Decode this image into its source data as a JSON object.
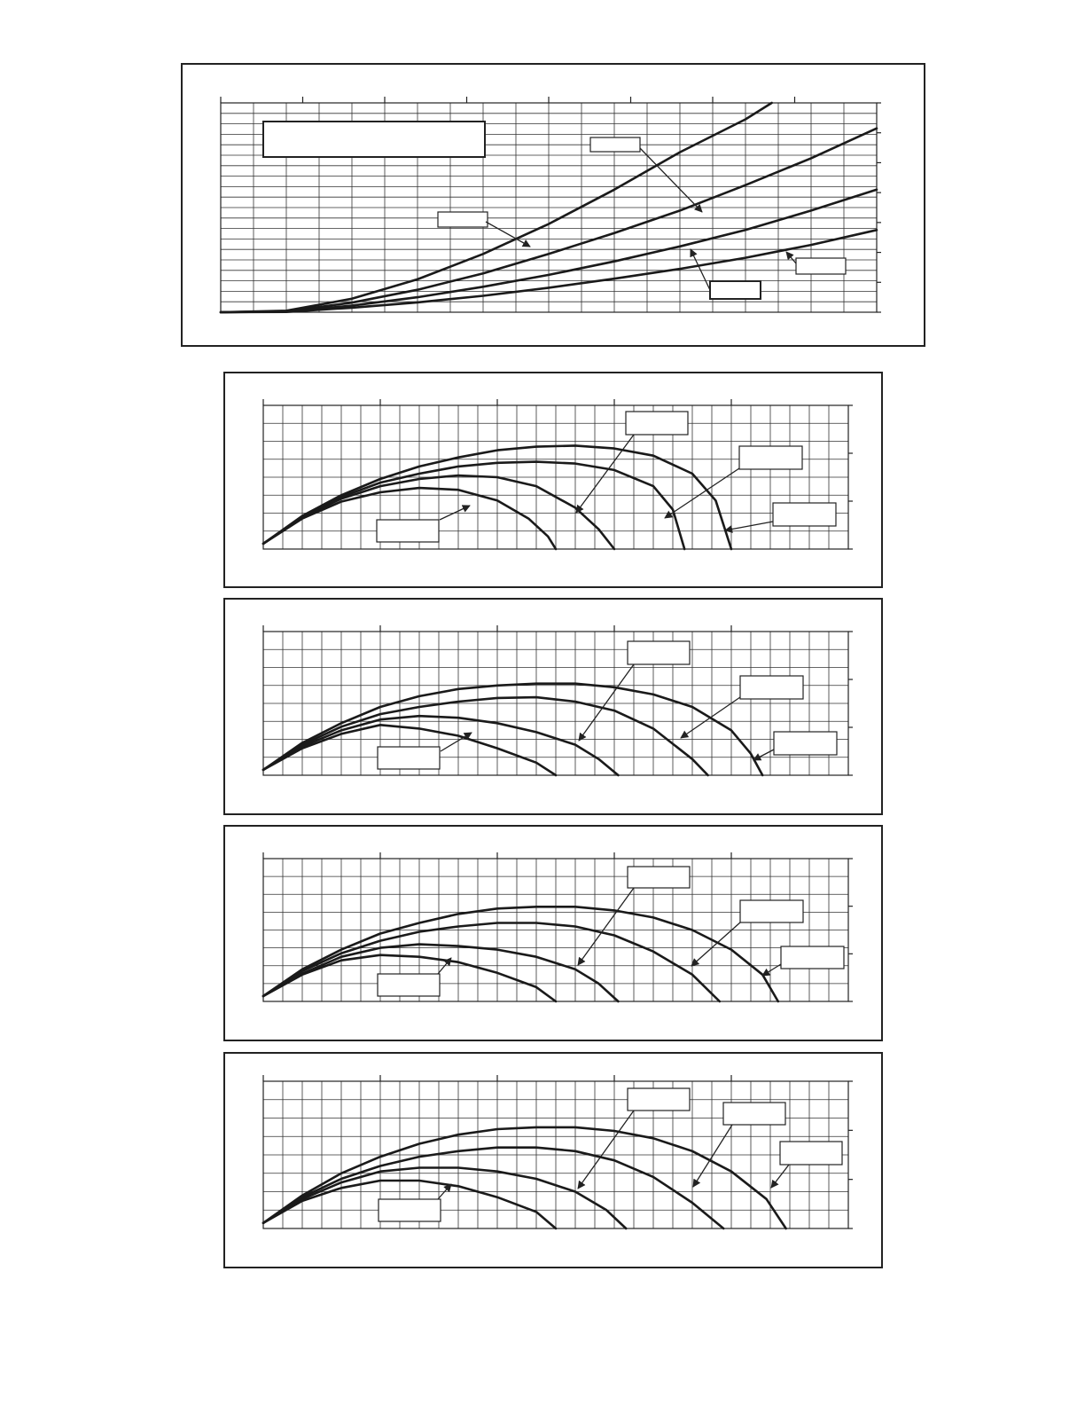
{
  "chart_data": [
    {
      "type": "line",
      "title": "",
      "xlabel": "",
      "ylabel": "",
      "xlim": [
        0,
        20
      ],
      "ylim": [
        0,
        7
      ],
      "grid": true,
      "legend": "",
      "series": [
        {
          "name": "",
          "x": [
            0,
            2,
            4,
            6,
            8,
            10,
            12,
            14,
            16,
            16.8
          ],
          "y": [
            0,
            0.05,
            0.45,
            1.1,
            1.95,
            2.95,
            4.1,
            5.35,
            6.45,
            7.0
          ]
        },
        {
          "name": "",
          "x": [
            0,
            2,
            4,
            6,
            8,
            10,
            12,
            14,
            16,
            18,
            20
          ],
          "y": [
            0,
            0.03,
            0.32,
            0.75,
            1.3,
            1.95,
            2.65,
            3.4,
            4.25,
            5.15,
            6.15
          ]
        },
        {
          "name": "",
          "x": [
            0,
            2,
            4,
            6,
            8,
            10,
            12,
            14,
            16,
            18,
            20
          ],
          "y": [
            0,
            0.02,
            0.22,
            0.5,
            0.85,
            1.25,
            1.7,
            2.2,
            2.75,
            3.4,
            4.1
          ]
        },
        {
          "name": "",
          "x": [
            0,
            2,
            4,
            6,
            8,
            10,
            12,
            14,
            16,
            18,
            20
          ],
          "y": [
            0,
            0.01,
            0.15,
            0.33,
            0.55,
            0.82,
            1.12,
            1.45,
            1.82,
            2.25,
            2.75
          ]
        }
      ]
    },
    {
      "type": "line",
      "title": "",
      "xlabel": "",
      "ylabel": "",
      "xlim": [
        0,
        15
      ],
      "ylim": [
        0,
        4
      ],
      "grid": true,
      "legend": "",
      "series": [
        {
          "name": "",
          "x": [
            0,
            1,
            2,
            3,
            4,
            5,
            6,
            6.8,
            7.3,
            7.5
          ],
          "y": [
            0.15,
            0.85,
            1.32,
            1.58,
            1.7,
            1.65,
            1.35,
            0.85,
            0.35,
            0
          ]
        },
        {
          "name": "",
          "x": [
            0,
            1,
            2,
            3,
            4,
            5,
            6,
            7,
            8,
            8.6,
            9.0
          ],
          "y": [
            0.15,
            0.88,
            1.4,
            1.75,
            1.95,
            2.05,
            2.0,
            1.75,
            1.15,
            0.55,
            0
          ]
        },
        {
          "name": "",
          "x": [
            0,
            1,
            2,
            3,
            4,
            5,
            6,
            7,
            8,
            9,
            10,
            10.5,
            10.8
          ],
          "y": [
            0.15,
            0.9,
            1.45,
            1.85,
            2.1,
            2.3,
            2.4,
            2.43,
            2.38,
            2.2,
            1.75,
            1.1,
            0
          ]
        },
        {
          "name": "",
          "x": [
            0,
            1,
            2,
            3,
            4,
            5,
            6,
            7,
            8,
            9,
            10,
            11,
            11.6,
            12.0
          ],
          "y": [
            0.15,
            0.92,
            1.5,
            1.95,
            2.3,
            2.55,
            2.75,
            2.85,
            2.88,
            2.8,
            2.6,
            2.1,
            1.35,
            0
          ]
        }
      ]
    },
    {
      "type": "line",
      "title": "",
      "xlabel": "",
      "ylabel": "",
      "xlim": [
        0,
        15
      ],
      "ylim": [
        0,
        4
      ],
      "grid": true,
      "legend": "",
      "series": [
        {
          "name": "",
          "x": [
            0,
            1,
            2,
            3,
            4,
            5,
            6,
            7,
            7.5
          ],
          "y": [
            0.15,
            0.75,
            1.15,
            1.4,
            1.3,
            1.1,
            0.75,
            0.35,
            0
          ]
        },
        {
          "name": "",
          "x": [
            0,
            1,
            2,
            3,
            4,
            5,
            6,
            7,
            8,
            8.6,
            9.1
          ],
          "y": [
            0.15,
            0.8,
            1.25,
            1.55,
            1.65,
            1.6,
            1.45,
            1.2,
            0.85,
            0.45,
            0
          ]
        },
        {
          "name": "",
          "x": [
            0,
            1,
            2,
            3,
            4,
            5,
            6,
            7,
            8,
            9,
            10,
            11,
            11.4
          ],
          "y": [
            0.15,
            0.85,
            1.35,
            1.7,
            1.9,
            2.05,
            2.15,
            2.17,
            2.05,
            1.8,
            1.3,
            0.45,
            0
          ]
        },
        {
          "name": "",
          "x": [
            0,
            1,
            2,
            3,
            4,
            5,
            6,
            7,
            8,
            9,
            10,
            11,
            12,
            12.5,
            12.8
          ],
          "y": [
            0.15,
            0.9,
            1.45,
            1.9,
            2.2,
            2.4,
            2.5,
            2.55,
            2.55,
            2.45,
            2.25,
            1.9,
            1.25,
            0.6,
            0
          ]
        }
      ]
    },
    {
      "type": "line",
      "title": "",
      "xlabel": "",
      "ylabel": "",
      "xlim": [
        0,
        15
      ],
      "ylim": [
        0,
        4
      ],
      "grid": true,
      "legend": "",
      "series": [
        {
          "name": "",
          "x": [
            0,
            1,
            2,
            3,
            4,
            5,
            6,
            7,
            7.5
          ],
          "y": [
            0.15,
            0.75,
            1.15,
            1.3,
            1.25,
            1.1,
            0.8,
            0.4,
            0
          ]
        },
        {
          "name": "",
          "x": [
            0,
            1,
            2,
            3,
            4,
            5,
            6,
            7,
            8,
            8.6,
            9.1
          ],
          "y": [
            0.15,
            0.78,
            1.25,
            1.5,
            1.6,
            1.55,
            1.45,
            1.25,
            0.9,
            0.5,
            0
          ]
        },
        {
          "name": "",
          "x": [
            0,
            1,
            2,
            3,
            4,
            5,
            6,
            7,
            8,
            9,
            10,
            11,
            11.7
          ],
          "y": [
            0.15,
            0.85,
            1.35,
            1.7,
            1.95,
            2.1,
            2.2,
            2.2,
            2.1,
            1.85,
            1.4,
            0.75,
            0
          ]
        },
        {
          "name": "",
          "x": [
            0,
            1,
            2,
            3,
            4,
            5,
            6,
            7,
            8,
            9,
            10,
            11,
            12,
            12.8,
            13.2
          ],
          "y": [
            0.15,
            0.9,
            1.45,
            1.9,
            2.2,
            2.45,
            2.6,
            2.65,
            2.65,
            2.55,
            2.35,
            2.0,
            1.45,
            0.75,
            0
          ]
        }
      ]
    },
    {
      "type": "line",
      "title": "",
      "xlabel": "",
      "ylabel": "",
      "xlim": [
        0,
        15
      ],
      "ylim": [
        0,
        4
      ],
      "grid": true,
      "legend": "",
      "series": [
        {
          "name": "",
          "x": [
            0,
            1,
            2,
            3,
            4,
            5,
            6,
            7,
            7.5
          ],
          "y": [
            0.15,
            0.75,
            1.1,
            1.3,
            1.3,
            1.15,
            0.85,
            0.45,
            0
          ]
        },
        {
          "name": "",
          "x": [
            0,
            1,
            2,
            3,
            4,
            5,
            6,
            7,
            8,
            8.8,
            9.3
          ],
          "y": [
            0.15,
            0.8,
            1.25,
            1.55,
            1.65,
            1.65,
            1.55,
            1.35,
            1.0,
            0.5,
            0
          ]
        },
        {
          "name": "",
          "x": [
            0,
            1,
            2,
            3,
            4,
            5,
            6,
            7,
            8,
            9,
            10,
            11,
            11.8
          ],
          "y": [
            0.15,
            0.85,
            1.35,
            1.7,
            1.95,
            2.1,
            2.2,
            2.2,
            2.1,
            1.85,
            1.4,
            0.7,
            0
          ]
        },
        {
          "name": "",
          "x": [
            0,
            1,
            2,
            3,
            4,
            5,
            6,
            7,
            8,
            9,
            10,
            11,
            12,
            12.9,
            13.4
          ],
          "y": [
            0.15,
            0.9,
            1.5,
            1.95,
            2.3,
            2.55,
            2.7,
            2.75,
            2.75,
            2.65,
            2.45,
            2.1,
            1.55,
            0.8,
            0
          ]
        }
      ]
    }
  ]
}
